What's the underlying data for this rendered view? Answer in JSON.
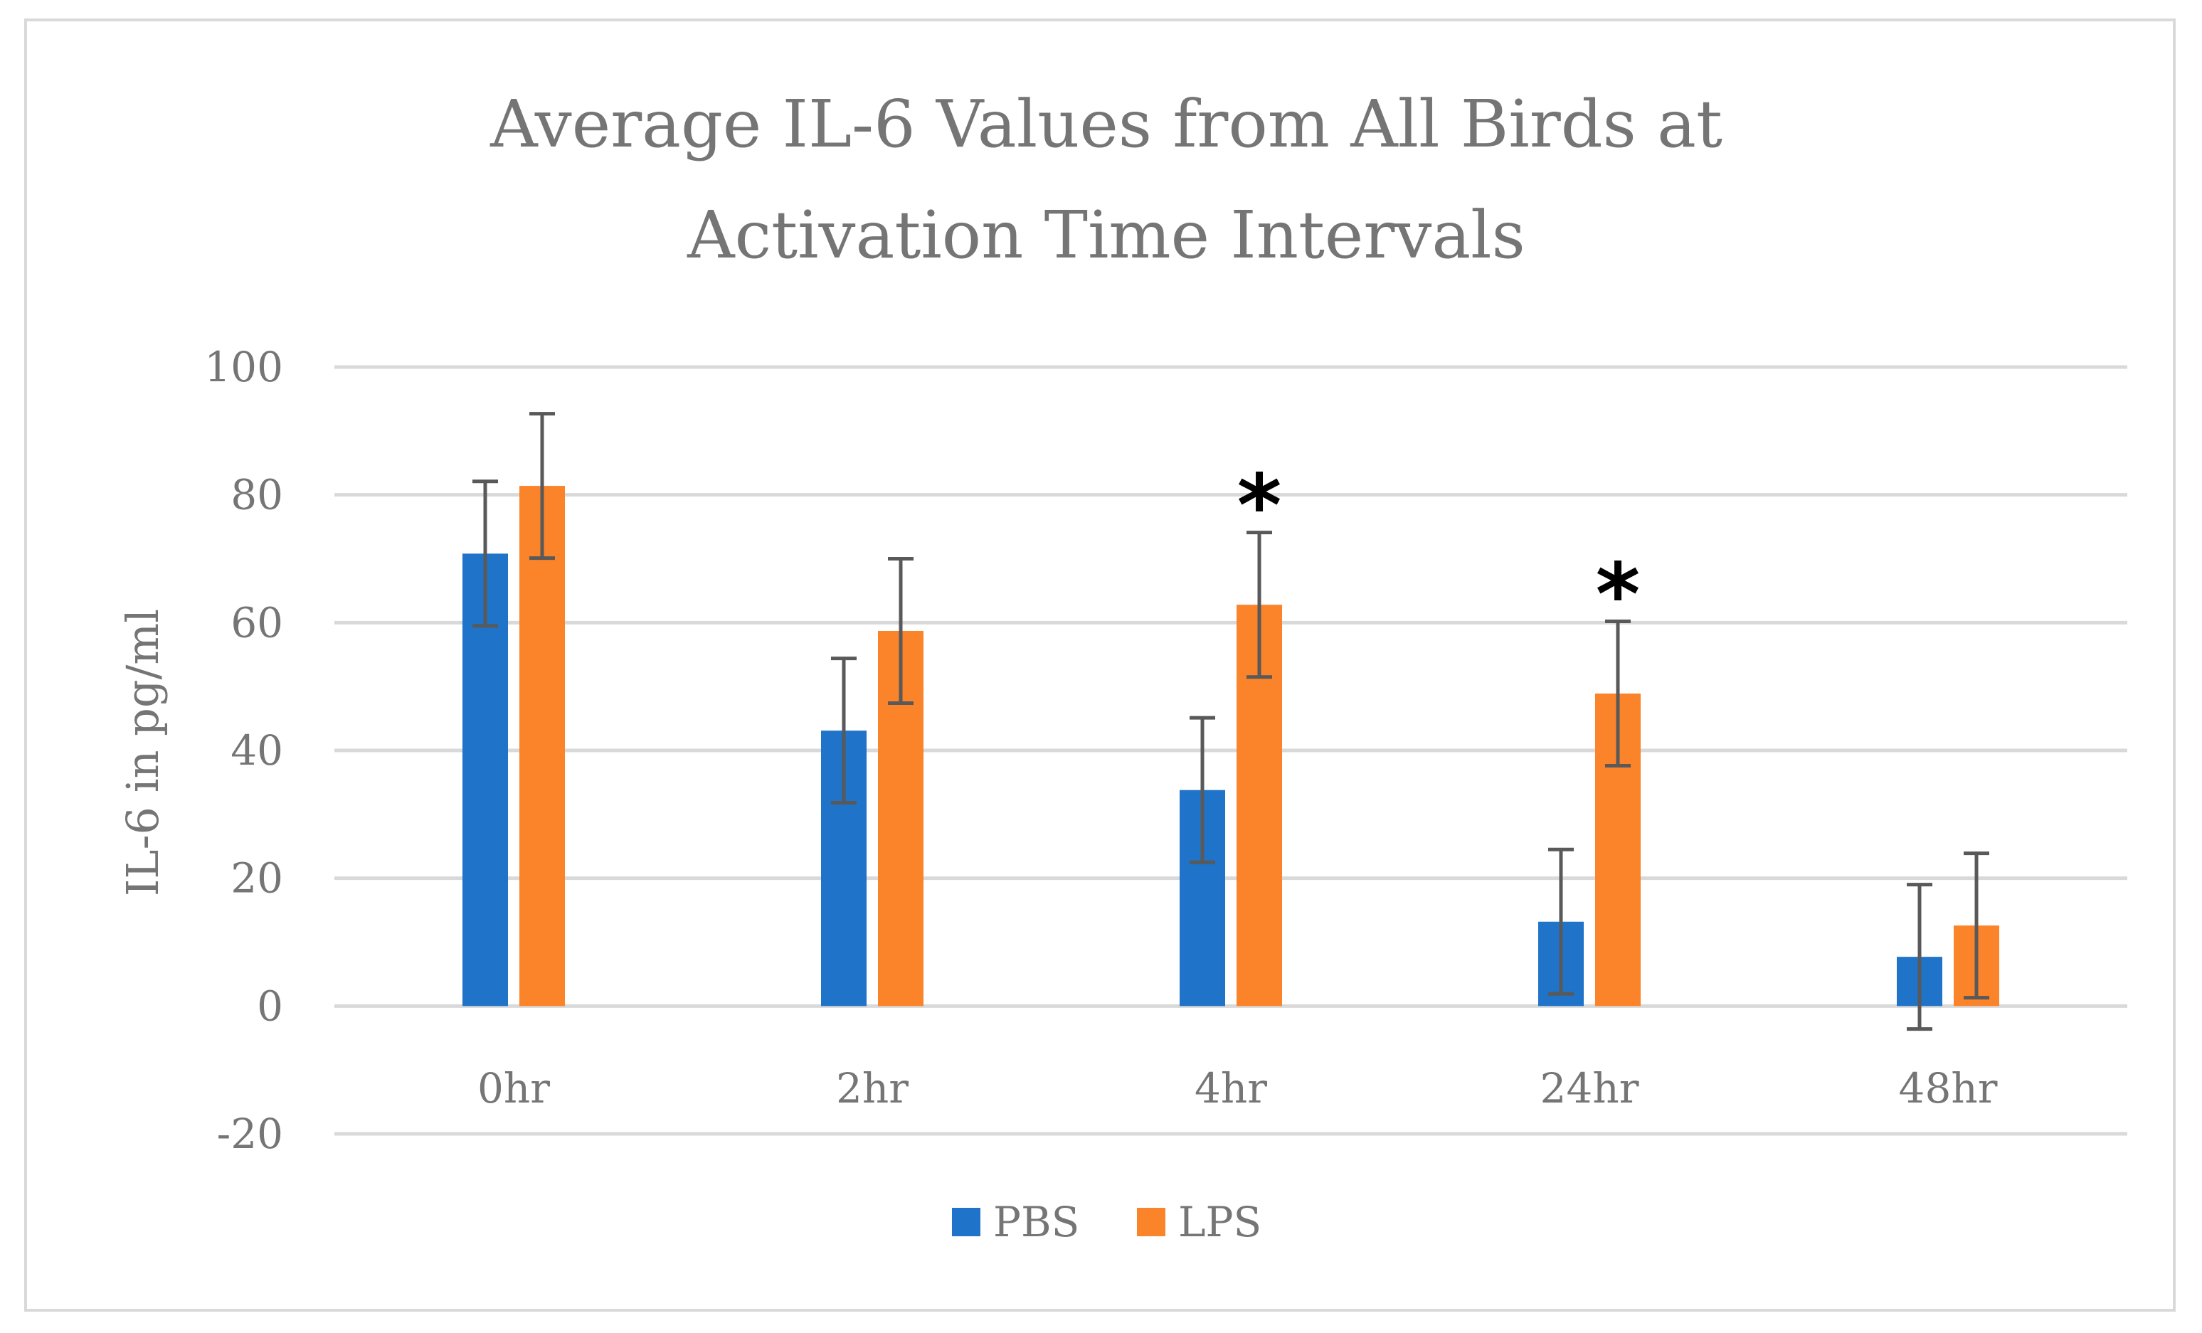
{
  "chart_data": {
    "type": "bar",
    "title_lines": [
      "Average IL-6 Values from All Birds at",
      "Activation Time Intervals"
    ],
    "xlabel": "",
    "ylabel": "IL-6 in pg/ml",
    "categories": [
      "0hr",
      "2hr",
      "4hr",
      "24hr",
      "48hr"
    ],
    "ylim": [
      -20,
      100
    ],
    "yticks": [
      "100",
      "80",
      "60",
      "40",
      "20",
      "0",
      "-20"
    ],
    "ytick_values": [
      100,
      80,
      60,
      40,
      20,
      0,
      -20
    ],
    "grid": true,
    "legend_position": "bottom",
    "series": [
      {
        "name": "PBS",
        "color": "#1f73c8",
        "values": [
          70.8,
          43.1,
          33.8,
          13.2,
          7.7
        ],
        "error": [
          11.3,
          11.3,
          11.3,
          11.3,
          11.3
        ]
      },
      {
        "name": "LPS",
        "color": "#fb8329",
        "values": [
          81.4,
          58.7,
          62.8,
          48.9,
          12.6
        ],
        "error": [
          11.3,
          11.3,
          11.3,
          11.3,
          11.3
        ]
      }
    ],
    "annotations": [
      {
        "category": "4hr",
        "series": "LPS",
        "text": "*"
      },
      {
        "category": "24hr",
        "series": "LPS",
        "text": "*"
      }
    ]
  }
}
